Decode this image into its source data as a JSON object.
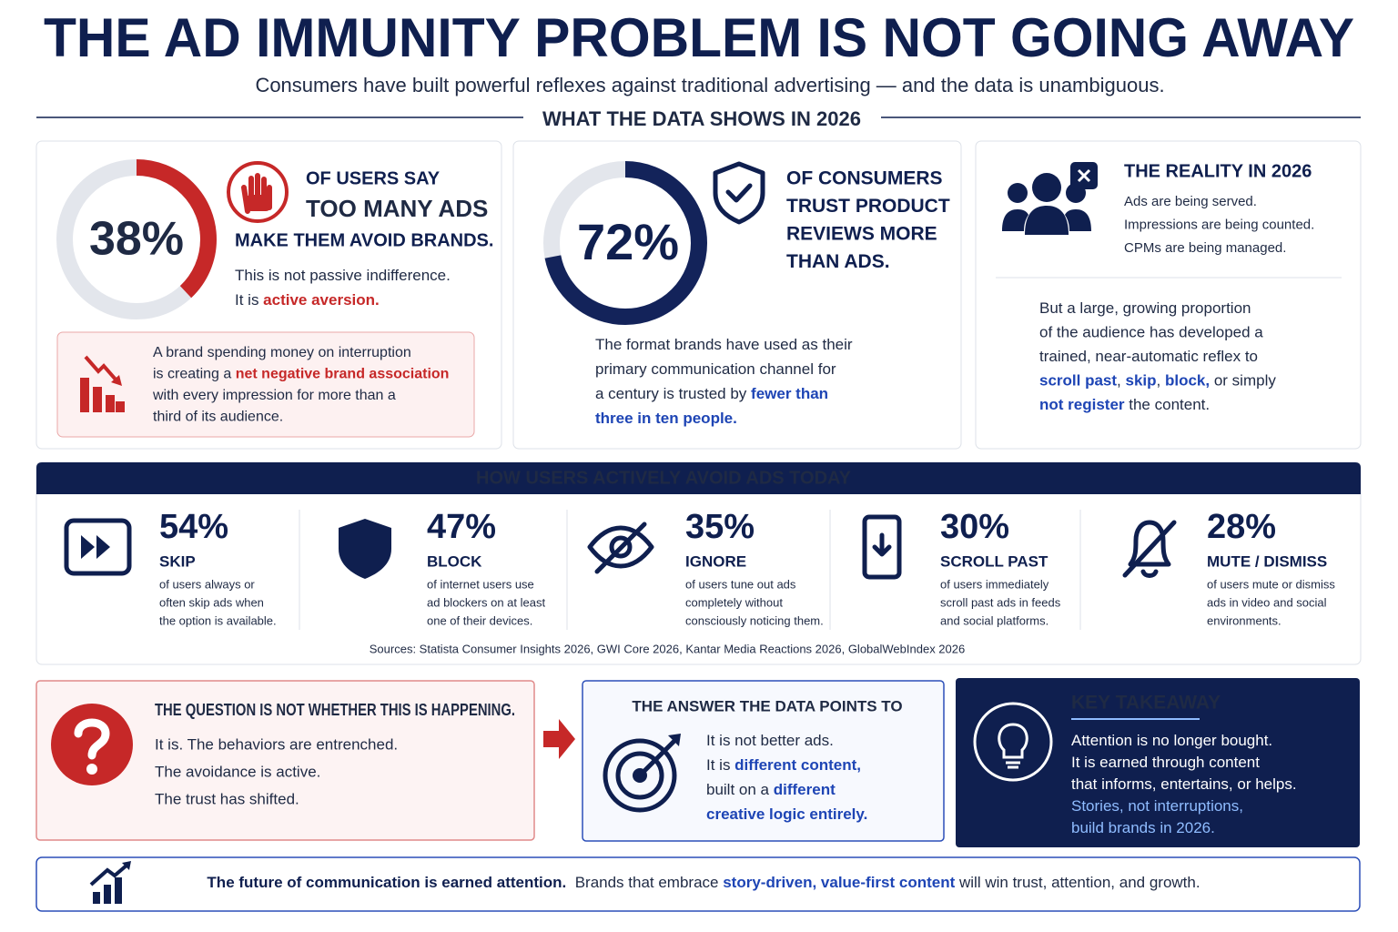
{
  "header": {
    "title": "THE AD IMMUNITY PROBLEM IS NOT GOING AWAY",
    "subtitle": "Consumers have built powerful reflexes against traditional advertising — and the data is unambiguous.",
    "section": "WHAT THE DATA SHOWS IN 2026"
  },
  "card1": {
    "stat": {
      "value": 38,
      "label": "38%"
    },
    "lead": "OF USERS SAY",
    "highlight": "TOO MANY ADS",
    "tail": "MAKE THEM AVOID BRANDS.",
    "note": [
      [
        {
          "text": "This is not passive indifference."
        }
      ],
      [
        {
          "text": "It is "
        },
        {
          "text": "active aversion.",
          "em": true
        }
      ]
    ],
    "callout": [
      [
        {
          "text": "A brand spending money on interruption"
        }
      ],
      [
        {
          "text": "is creating a "
        },
        {
          "text": "net negative brand association",
          "em": true
        }
      ],
      [
        {
          "text": "with every impression for more than a"
        }
      ],
      [
        {
          "text": "third of its audience."
        }
      ]
    ]
  },
  "card2": {
    "stat": {
      "value": 72,
      "label": "72%"
    },
    "heading": [
      "OF CONSUMERS",
      "TRUST PRODUCT",
      "REVIEWS MORE",
      "THAN ADS."
    ],
    "body": [
      [
        {
          "text": "The format brands have used as their"
        }
      ],
      [
        {
          "text": "primary communication channel for"
        }
      ],
      [
        {
          "text": "a century is trusted by "
        },
        {
          "text": "fewer than",
          "em": true
        }
      ],
      [
        {
          "text": "three in ten people.",
          "em": true
        }
      ]
    ]
  },
  "card3": {
    "heading": "THE REALITY IN 2026",
    "facts": [
      "Ads are being served.",
      "Impressions are being counted.",
      "CPMs are being managed."
    ],
    "body": [
      [
        {
          "text": "But a large, growing proportion"
        }
      ],
      [
        {
          "text": "of the audience has developed a"
        }
      ],
      [
        {
          "text": "trained, near-automatic reflex to"
        }
      ],
      [
        {
          "text": "scroll past",
          "em": true
        },
        {
          "text": ", "
        },
        {
          "text": "skip",
          "em": true
        },
        {
          "text": ", "
        },
        {
          "text": "block,",
          "em": true
        },
        {
          "text": " or simply"
        }
      ],
      [
        {
          "text": "not register",
          "em": true
        },
        {
          "text": " the content."
        }
      ]
    ]
  },
  "behaviors": {
    "title": "HOW USERS ACTIVELY AVOID ADS TODAY",
    "items": [
      {
        "stat": "54%",
        "name": "SKIP",
        "desc": [
          "of users always or",
          "often skip ads when",
          "the option is available."
        ]
      },
      {
        "stat": "47%",
        "name": "BLOCK",
        "desc": [
          "of internet users use",
          "ad blockers on at least",
          "one of their devices."
        ]
      },
      {
        "stat": "35%",
        "name": "IGNORE",
        "desc": [
          "of users tune out ads",
          "completely without",
          "consciously noticing them."
        ]
      },
      {
        "stat": "30%",
        "name": "SCROLL PAST",
        "desc": [
          "of users immediately",
          "scroll past ads in feeds",
          "and social platforms."
        ]
      },
      {
        "stat": "28%",
        "name": "MUTE / DISMISS",
        "desc": [
          "of users mute or dismiss",
          "ads in video and social",
          "environments."
        ]
      }
    ],
    "sources": "Sources: Statista Consumer Insights 2026, GWI Core 2026, Kantar Media Reactions 2026, GlobalWebIndex 2026"
  },
  "question": {
    "title": "THE QUESTION IS NOT WHETHER THIS IS HAPPENING.",
    "lines": [
      "It is. The behaviors are entrenched.",
      "The avoidance is active.",
      "The trust has shifted."
    ]
  },
  "answer": {
    "title": "THE ANSWER THE DATA POINTS TO",
    "lines": [
      [
        {
          "text": "It is not better ads."
        }
      ],
      [
        {
          "text": "It is "
        },
        {
          "text": "different content,",
          "em": true
        }
      ],
      [
        {
          "text": "built on a "
        },
        {
          "text": "different",
          "em": true
        }
      ],
      [
        {
          "text": "creative logic entirely.",
          "em": true
        }
      ]
    ]
  },
  "takeaway": {
    "title": "KEY TAKEAWAY",
    "lines": [
      [
        {
          "text": "Attention is no longer bought."
        }
      ],
      [
        {
          "text": "It is earned through content"
        }
      ],
      [
        {
          "text": "that informs, entertains, or helps."
        }
      ],
      [
        {
          "text": "Stories, not interruptions,",
          "em": true
        }
      ],
      [
        {
          "text": "build brands in 2026.",
          "em": true
        }
      ]
    ]
  },
  "footer": {
    "lines": [
      [
        {
          "text": "The future of communication is earned attention.  ",
          "strong": true
        },
        {
          "text": "Brands that embrace "
        },
        {
          "text": "story-driven, value-first content",
          "em": true
        },
        {
          "text": " will win trust, attention, and growth."
        }
      ]
    ]
  }
}
